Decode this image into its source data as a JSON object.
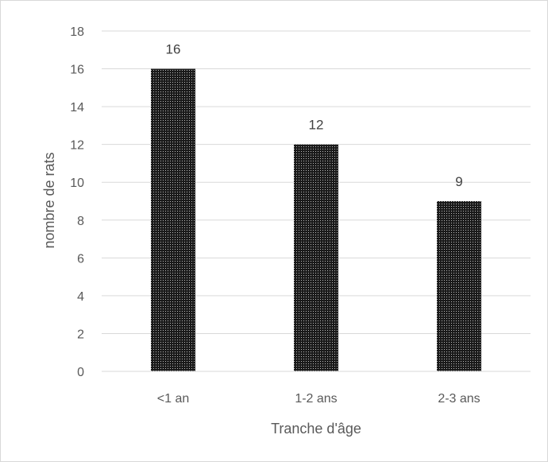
{
  "chart_data": {
    "type": "bar",
    "categories": [
      "<1 an",
      "1-2 ans",
      "2-3 ans"
    ],
    "values": [
      16,
      12,
      9
    ],
    "data_labels": [
      "16",
      "12",
      "9"
    ],
    "title": "",
    "xlabel": "Tranche d'âge",
    "ylabel": "nombre de rats",
    "ylim": [
      0,
      18
    ],
    "yticks": [
      0,
      2,
      4,
      6,
      8,
      10,
      12,
      14,
      16,
      18
    ],
    "grid": "horizontal",
    "bar_color": "#262626"
  }
}
